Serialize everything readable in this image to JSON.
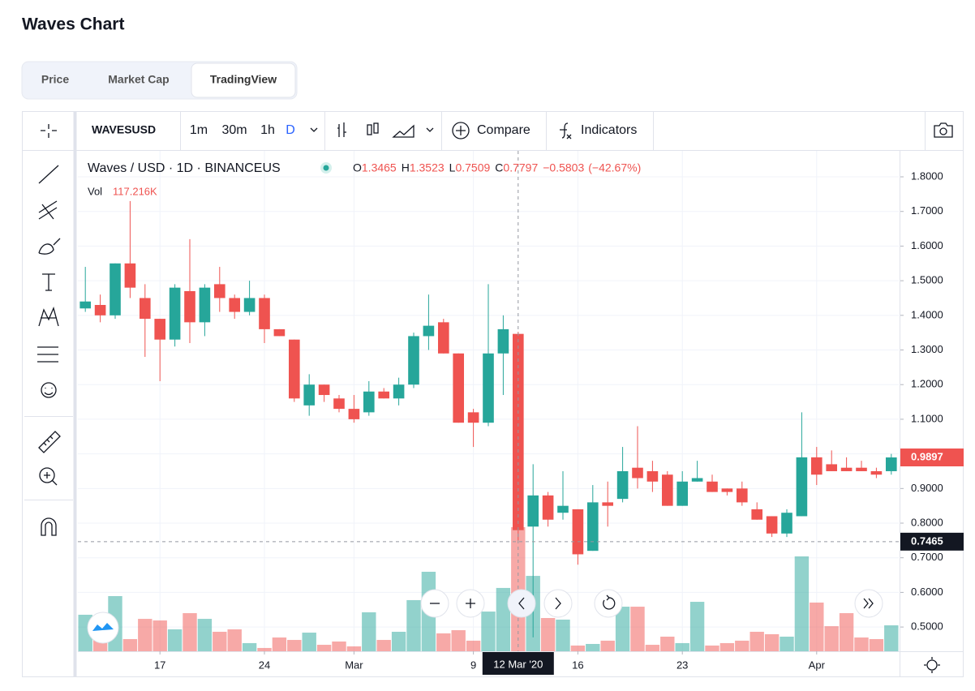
{
  "page": {
    "title": "Waves Chart",
    "tabs": [
      "Price",
      "Market Cap",
      "TradingView"
    ],
    "active_tab": 2
  },
  "toolbar": {
    "symbol": "WAVESUSD",
    "intervals": [
      "1m",
      "30m",
      "1h",
      "D"
    ],
    "active_interval": 3,
    "compare": "Compare",
    "indicators": "Indicators"
  },
  "chart_data": {
    "type": "candlestick",
    "title": "Waves / USD · 1D · BINANCEUS",
    "x": [
      "2020-02-12",
      "2020-02-13",
      "2020-02-14",
      "2020-02-15",
      "2020-02-16",
      "2020-02-17",
      "2020-02-18",
      "2020-02-19",
      "2020-02-20",
      "2020-02-21",
      "2020-02-22",
      "2020-02-23",
      "2020-02-24",
      "2020-02-25",
      "2020-02-26",
      "2020-02-27",
      "2020-02-28",
      "2020-02-29",
      "2020-03-01",
      "2020-03-02",
      "2020-03-03",
      "2020-03-04",
      "2020-03-05",
      "2020-03-06",
      "2020-03-07",
      "2020-03-08",
      "2020-03-09",
      "2020-03-10",
      "2020-03-11",
      "2020-03-12",
      "2020-03-13",
      "2020-03-14",
      "2020-03-15",
      "2020-03-16",
      "2020-03-17",
      "2020-03-18",
      "2020-03-19",
      "2020-03-20",
      "2020-03-21",
      "2020-03-22",
      "2020-03-23",
      "2020-03-24",
      "2020-03-25",
      "2020-03-26",
      "2020-03-27",
      "2020-03-28",
      "2020-03-29",
      "2020-03-30",
      "2020-03-31",
      "2020-04-01",
      "2020-04-02",
      "2020-04-03",
      "2020-04-04",
      "2020-04-05",
      "2020-04-06"
    ],
    "open": [
      1.42,
      1.43,
      1.4,
      1.55,
      1.45,
      1.39,
      1.33,
      1.47,
      1.38,
      1.49,
      1.45,
      1.41,
      1.45,
      1.36,
      1.33,
      1.14,
      1.2,
      1.16,
      1.13,
      1.12,
      1.18,
      1.16,
      1.2,
      1.34,
      1.38,
      1.29,
      1.12,
      1.09,
      1.29,
      1.3465,
      0.79,
      0.88,
      0.83,
      0.84,
      0.72,
      0.86,
      0.87,
      0.96,
      0.95,
      0.94,
      0.85,
      0.92,
      0.92,
      0.9,
      0.9,
      0.84,
      0.82,
      0.77,
      0.82,
      0.99,
      0.97,
      0.96,
      0.96,
      0.95,
      0.95
    ],
    "high": [
      1.54,
      1.46,
      1.55,
      1.73,
      1.49,
      1.39,
      1.49,
      1.62,
      1.49,
      1.54,
      1.46,
      1.5,
      1.46,
      1.36,
      1.33,
      1.23,
      1.2,
      1.17,
      1.17,
      1.21,
      1.19,
      1.22,
      1.35,
      1.46,
      1.39,
      1.29,
      1.13,
      1.49,
      1.4,
      1.3523,
      0.97,
      0.89,
      0.95,
      0.84,
      0.91,
      0.92,
      1.02,
      1.08,
      0.98,
      0.95,
      0.95,
      0.98,
      0.94,
      0.9,
      0.92,
      0.86,
      0.82,
      0.84,
      1.12,
      1.02,
      1.01,
      0.99,
      0.98,
      0.96,
      1.0
    ],
    "low": [
      1.41,
      1.38,
      1.39,
      1.45,
      1.28,
      1.21,
      1.31,
      1.32,
      1.34,
      1.41,
      1.39,
      1.4,
      1.32,
      1.34,
      1.15,
      1.11,
      1.15,
      1.12,
      1.09,
      1.11,
      1.16,
      1.14,
      1.19,
      1.3,
      1.29,
      1.09,
      1.02,
      1.08,
      1.17,
      0.7509,
      0.47,
      0.79,
      0.81,
      0.68,
      0.72,
      0.79,
      0.86,
      0.9,
      0.89,
      0.85,
      0.85,
      0.92,
      0.89,
      0.88,
      0.85,
      0.81,
      0.76,
      0.76,
      0.82,
      0.91,
      0.95,
      0.95,
      0.95,
      0.93,
      0.94
    ],
    "close": [
      1.44,
      1.4,
      1.55,
      1.48,
      1.39,
      1.33,
      1.48,
      1.38,
      1.48,
      1.45,
      1.41,
      1.45,
      1.36,
      1.34,
      1.16,
      1.2,
      1.17,
      1.13,
      1.1,
      1.18,
      1.16,
      1.2,
      1.34,
      1.37,
      1.29,
      1.09,
      1.09,
      1.29,
      1.36,
      0.7797,
      0.88,
      0.81,
      0.85,
      0.71,
      0.86,
      0.85,
      0.95,
      0.93,
      0.92,
      0.85,
      0.92,
      0.93,
      0.89,
      0.89,
      0.86,
      0.81,
      0.77,
      0.83,
      0.99,
      0.94,
      0.95,
      0.95,
      0.95,
      0.94,
      0.9897
    ],
    "volume": [
      34500,
      26800,
      52100,
      11500,
      30600,
      29100,
      20700,
      36000,
      30600,
      18400,
      20700,
      7700,
      3100,
      13000,
      10700,
      17600,
      6100,
      9200,
      4600,
      36800,
      10700,
      18400,
      48300,
      75100,
      16900,
      19900,
      10000,
      37500,
      59800,
      117216,
      71200,
      31400,
      29900,
      5400,
      6900,
      10000,
      42100,
      42100,
      6100,
      13800,
      7700,
      46700,
      5400,
      7700,
      10000,
      18400,
      16100,
      13800,
      89600,
      46000,
      23700,
      36000,
      13000,
      11500,
      24500
    ],
    "up_color": "#26a69a",
    "down_color": "#ef5350",
    "xlim": [
      "2020-02-12",
      "2020-04-06"
    ],
    "xticks": [
      {
        "value": "2020-02-17",
        "label": "17"
      },
      {
        "value": "2020-02-24",
        "label": "24"
      },
      {
        "value": "2020-03-01",
        "label": "Mar"
      },
      {
        "value": "2020-03-09",
        "label": "9"
      },
      {
        "value": "2020-03-16",
        "label": "16"
      },
      {
        "value": "2020-03-23",
        "label": "23"
      },
      {
        "value": "2020-04-01",
        "label": "Apr"
      }
    ],
    "ylim": [
      0.43,
      1.875
    ],
    "yticks": [
      {
        "value": 0.5,
        "label": "0.5000"
      },
      {
        "value": 0.6,
        "label": "0.6000"
      },
      {
        "value": 0.7,
        "label": "0.7000"
      },
      {
        "value": 0.8,
        "label": "0.8000"
      },
      {
        "value": 0.9,
        "label": "0.9000"
      },
      {
        "value": 1.0,
        "label": "1.0000"
      },
      {
        "value": 1.1,
        "label": "1.1000"
      },
      {
        "value": 1.2,
        "label": "1.2000"
      },
      {
        "value": 1.3,
        "label": "1.3000"
      },
      {
        "value": 1.4,
        "label": "1.4000"
      },
      {
        "value": 1.5,
        "label": "1.5000"
      },
      {
        "value": 1.6,
        "label": "1.6000"
      },
      {
        "value": 1.7,
        "label": "1.7000"
      },
      {
        "value": 1.8,
        "label": "1.8000"
      }
    ],
    "grid": true,
    "legend": {
      "open_prefix": "O",
      "high_prefix": "H",
      "low_prefix": "L",
      "close_prefix": "C",
      "change": {
        "value": -0.5803,
        "label": "−0.5803"
      },
      "change_pct": {
        "value": -42.67,
        "label": "(−42.67%)"
      },
      "vol_label": "Vol",
      "vol_value": "117.216K"
    },
    "last_price": 0.9897,
    "crosshair": {
      "x": "2020-03-12",
      "x_label": "12 Mar '20",
      "y": 0.7465
    }
  }
}
